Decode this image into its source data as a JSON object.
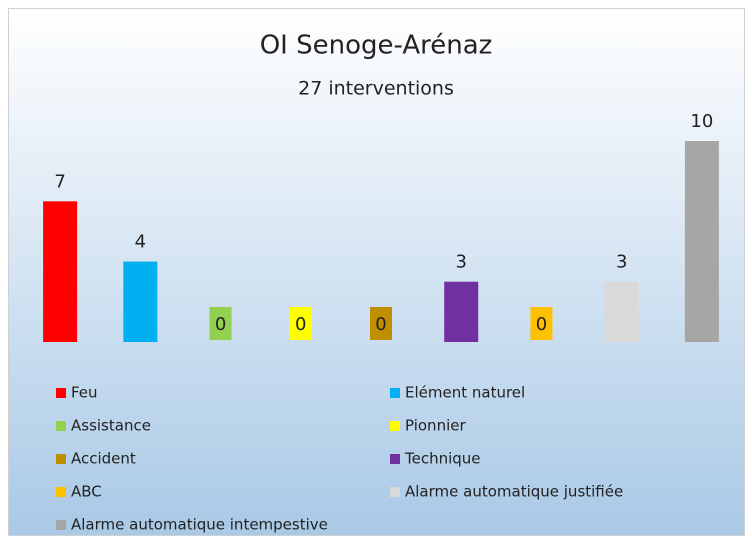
{
  "chart_data": {
    "type": "bar",
    "title": "OI Senoge-Arénaz",
    "subtitle": "27 interventions",
    "categories": [
      "Feu",
      "Elément naturel",
      "Assistance",
      "Pionnier",
      "Accident",
      "Technique",
      "ABC",
      "Alarme automatique justifiée",
      "Alarme automatique intempestive"
    ],
    "values": [
      7,
      4,
      0,
      0,
      0,
      3,
      0,
      3,
      10
    ],
    "colors": [
      "#ff0000",
      "#00b0f0",
      "#92d050",
      "#ffff00",
      "#bf8f00",
      "#7030a0",
      "#ffc000",
      "#d9d9d9",
      "#a6a6a6"
    ],
    "legend": "bottom"
  }
}
